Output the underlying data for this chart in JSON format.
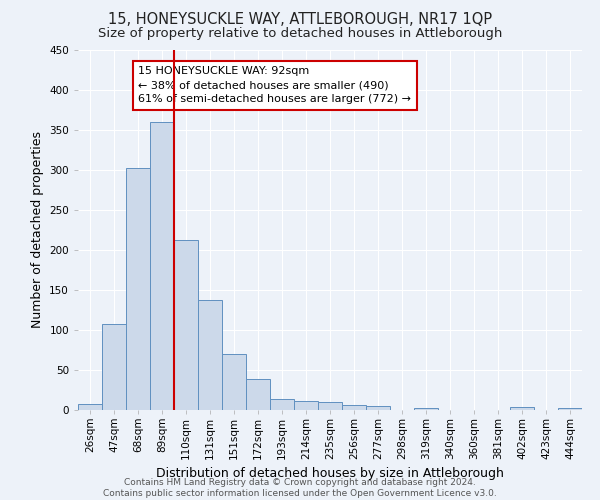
{
  "title": "15, HONEYSUCKLE WAY, ATTLEBOROUGH, NR17 1QP",
  "subtitle": "Size of property relative to detached houses in Attleborough",
  "xlabel": "Distribution of detached houses by size in Attleborough",
  "ylabel": "Number of detached properties",
  "bar_labels": [
    "26sqm",
    "47sqm",
    "68sqm",
    "89sqm",
    "110sqm",
    "131sqm",
    "151sqm",
    "172sqm",
    "193sqm",
    "214sqm",
    "235sqm",
    "256sqm",
    "277sqm",
    "298sqm",
    "319sqm",
    "340sqm",
    "360sqm",
    "381sqm",
    "402sqm",
    "423sqm",
    "444sqm"
  ],
  "bar_values": [
    8,
    108,
    303,
    360,
    213,
    138,
    70,
    39,
    14,
    11,
    10,
    6,
    5,
    0,
    3,
    0,
    0,
    0,
    4,
    0,
    3
  ],
  "bar_color": "#ccd9ea",
  "bar_edge_color": "#6090c0",
  "vline_color": "#cc0000",
  "annotation_line1": "15 HONEYSUCKLE WAY: 92sqm",
  "annotation_line2": "← 38% of detached houses are smaller (490)",
  "annotation_line3": "61% of semi-detached houses are larger (772) →",
  "annotation_box_color": "#ffffff",
  "annotation_box_edge": "#cc0000",
  "ylim": [
    0,
    450
  ],
  "yticks": [
    0,
    50,
    100,
    150,
    200,
    250,
    300,
    350,
    400,
    450
  ],
  "footer_line1": "Contains HM Land Registry data © Crown copyright and database right 2024.",
  "footer_line2": "Contains public sector information licensed under the Open Government Licence v3.0.",
  "bg_color": "#edf2f9",
  "grid_color": "#ffffff",
  "title_fontsize": 10.5,
  "subtitle_fontsize": 9.5,
  "axis_label_fontsize": 9,
  "tick_fontsize": 7.5,
  "annotation_fontsize": 8,
  "footer_fontsize": 6.5
}
